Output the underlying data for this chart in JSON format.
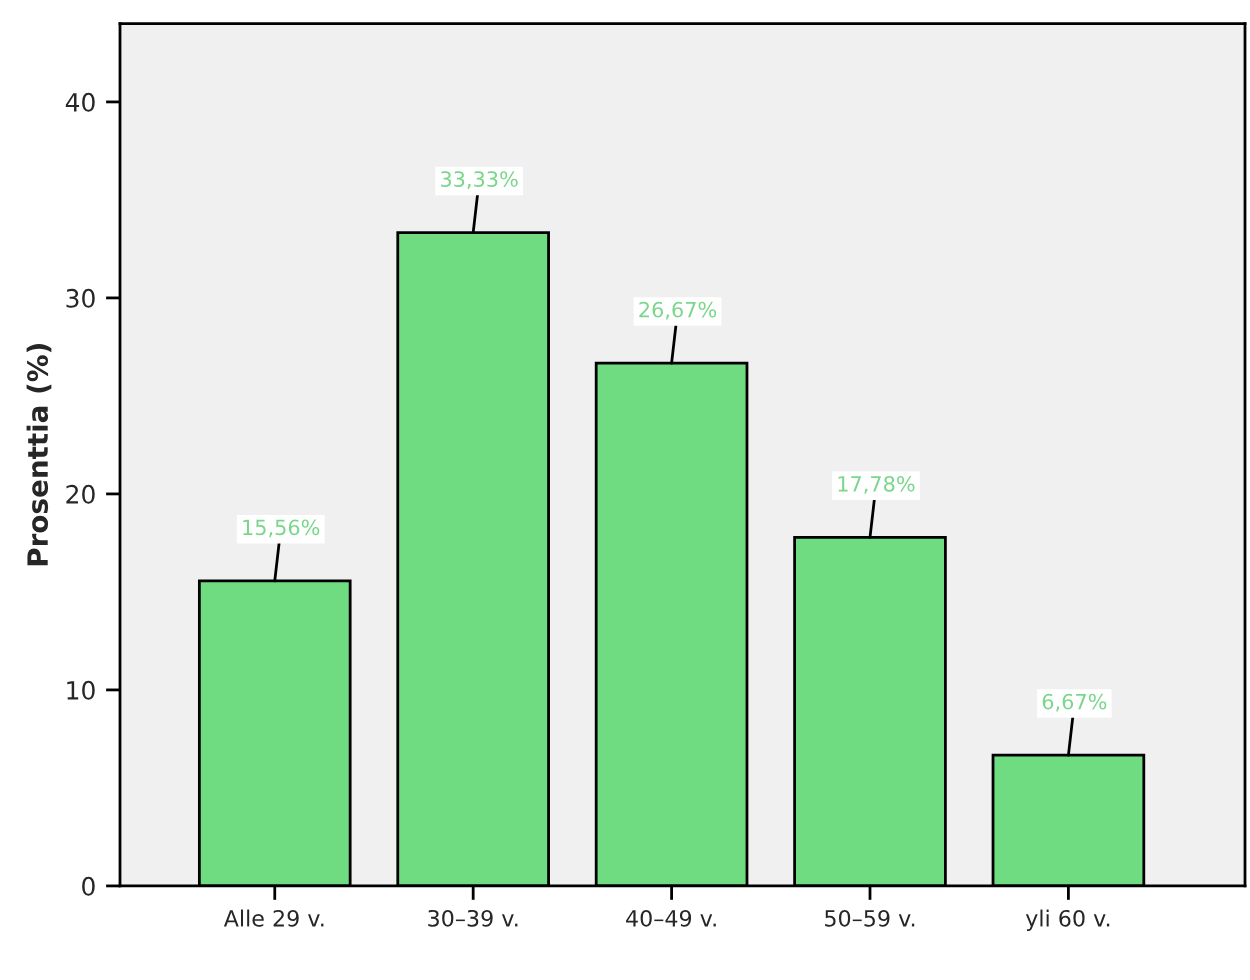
{
  "chart_data": {
    "type": "bar",
    "ylabel": "Prosenttia (%)",
    "categories": [
      "Alle 29 v.",
      "30–39 v.",
      "40–49 v.",
      "50–59 v.",
      "yli 60 v."
    ],
    "values": [
      15.56,
      33.33,
      26.67,
      17.78,
      6.67
    ],
    "value_labels": [
      "15,56%",
      "33,33%",
      "26,67%",
      "17,78%",
      "6,67%"
    ],
    "color": "#70dc82",
    "ylim": [
      0,
      44
    ],
    "yticks": [
      0,
      10,
      20,
      30,
      40
    ],
    "grid": false
  }
}
